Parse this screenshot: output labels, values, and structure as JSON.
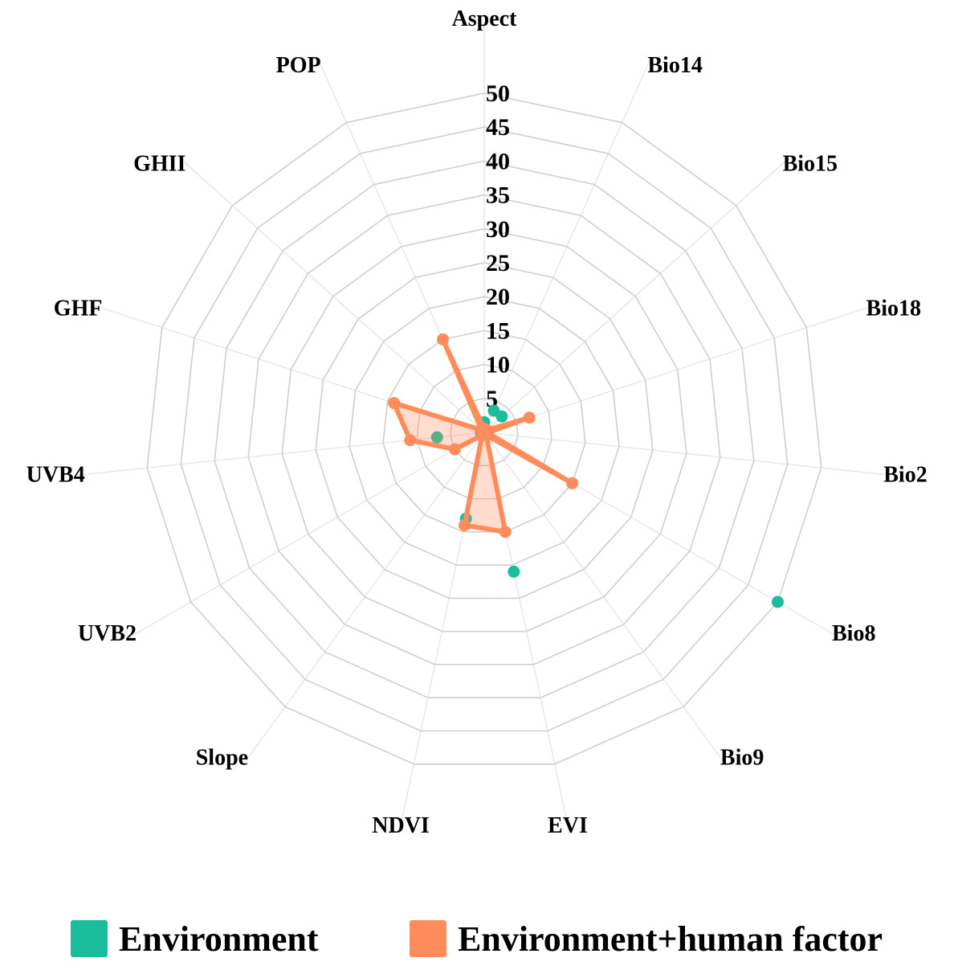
{
  "chart_data": {
    "type": "radar",
    "title": "",
    "categories": [
      "Aspect",
      "Bio14",
      "Bio15",
      "Bio18",
      "Bio2",
      "Bio8",
      "Bio9",
      "EVI",
      "NDVI",
      "Slope",
      "UVB2",
      "UVB4",
      "GHF",
      "GHII",
      "POP"
    ],
    "radial_ticks": [
      "5",
      "10",
      "15",
      "20",
      "25",
      "30",
      "35",
      "40",
      "45",
      "50"
    ],
    "rlim": [
      0,
      50
    ],
    "grid": true,
    "legend_position": "bottom",
    "series": [
      {
        "name": "Environment",
        "color": "#1ABC9C",
        "style": "points",
        "values": [
          1.5,
          3.5,
          3.5,
          0.5,
          0.5,
          50,
          0.5,
          21,
          13,
          0.5,
          0.5,
          7,
          0.5,
          0.5,
          0.5
        ]
      },
      {
        "name": "Environment+human factor",
        "color": "#FF8C5A",
        "style": "line-filled",
        "values": [
          0.5,
          0.5,
          0.5,
          7,
          0.5,
          15,
          0.5,
          15,
          14,
          0.5,
          5,
          11,
          14,
          0.5,
          15
        ]
      }
    ]
  }
}
